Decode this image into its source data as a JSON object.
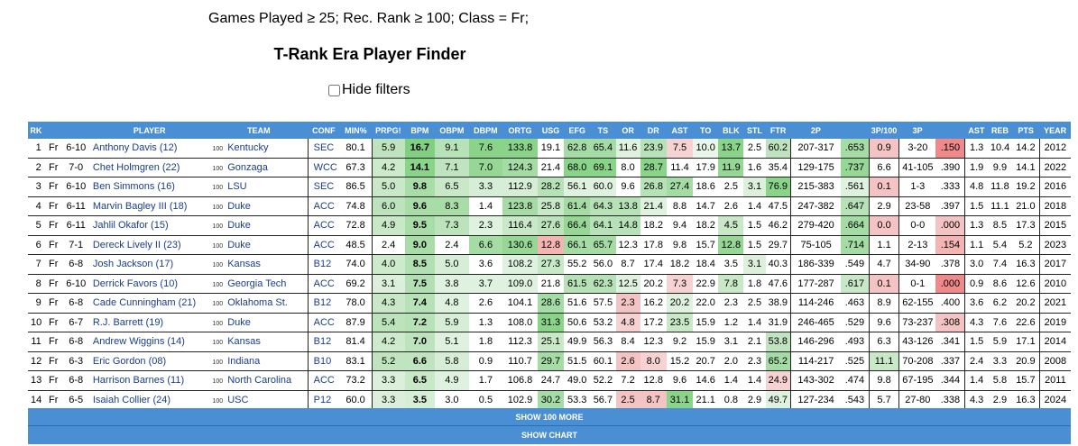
{
  "filters_text": "Games Played ≥ 25; Rec. Rank ≥ 100; Class = Fr;",
  "title": "T-Rank Era Player Finder",
  "hide_filters_label": "Hide filters",
  "columns": [
    "RK",
    "",
    "",
    "PLAYER",
    "TEAM",
    "CONF",
    "MIN%",
    "PRPG!",
    "BPM",
    "OBPM",
    "DBPM",
    "ORTG",
    "USG",
    "EFG",
    "TS",
    "OR",
    "DR",
    "AST",
    "TO",
    "BLK",
    "STL",
    "FTR",
    "2P",
    "",
    "3P/100",
    "3P",
    "",
    "AST",
    "REB",
    "PTS",
    "YEAR"
  ],
  "rows": [
    {
      "rk": "1",
      "cls": "Fr",
      "ht": "6-10",
      "player": "Anthony Davis (12)",
      "rec": "100",
      "team": "Kentucky",
      "conf": "SEC",
      "vals": [
        "80.1",
        "5.9",
        "16.7",
        "9.1",
        "7.6",
        "133.8",
        "19.1",
        "62.8",
        "65.4",
        "11.6",
        "23.9",
        "7.5",
        "10.0",
        "13.7",
        "2.5",
        "60.2",
        "207-317",
        ".653",
        "0.9",
        "3-20",
        ".150",
        "1.3",
        "10.4",
        "14.2",
        "2012"
      ]
    },
    {
      "rk": "2",
      "cls": "Fr",
      "ht": "7-0",
      "player": "Chet Holmgren (22)",
      "rec": "100",
      "team": "Gonzaga",
      "conf": "WCC",
      "vals": [
        "67.3",
        "4.2",
        "14.1",
        "7.1",
        "7.0",
        "124.3",
        "21.4",
        "68.0",
        "69.1",
        "8.0",
        "28.7",
        "11.4",
        "17.9",
        "11.9",
        "1.6",
        "35.4",
        "129-175",
        ".737",
        "6.6",
        "41-105",
        ".390",
        "1.9",
        "9.9",
        "14.1",
        "2022"
      ]
    },
    {
      "rk": "3",
      "cls": "Fr",
      "ht": "6-10",
      "player": "Ben Simmons (16)",
      "rec": "100",
      "team": "LSU",
      "conf": "SEC",
      "vals": [
        "86.5",
        "5.0",
        "9.8",
        "6.5",
        "3.3",
        "112.9",
        "28.2",
        "56.1",
        "60.0",
        "9.6",
        "26.8",
        "27.4",
        "18.6",
        "2.5",
        "3.1",
        "76.9",
        "215-383",
        ".561",
        "0.1",
        "1-3",
        ".333",
        "4.8",
        "11.8",
        "19.2",
        "2016"
      ]
    },
    {
      "rk": "4",
      "cls": "Fr",
      "ht": "6-11",
      "player": "Marvin Bagley III (18)",
      "rec": "100",
      "team": "Duke",
      "conf": "ACC",
      "vals": [
        "74.8",
        "6.0",
        "9.6",
        "8.3",
        "1.4",
        "123.8",
        "25.8",
        "61.4",
        "64.3",
        "13.8",
        "21.4",
        "8.8",
        "14.7",
        "2.6",
        "1.4",
        "47.5",
        "247-382",
        ".647",
        "2.9",
        "23-58",
        ".397",
        "1.5",
        "11.1",
        "21.0",
        "2018"
      ]
    },
    {
      "rk": "5",
      "cls": "Fr",
      "ht": "6-11",
      "player": "Jahlil Okafor (15)",
      "rec": "100",
      "team": "Duke",
      "conf": "ACC",
      "vals": [
        "72.8",
        "4.9",
        "9.5",
        "7.3",
        "2.3",
        "116.4",
        "27.6",
        "66.4",
        "64.1",
        "14.8",
        "18.2",
        "9.4",
        "18.2",
        "4.5",
        "1.5",
        "46.2",
        "279-420",
        ".664",
        "0.0",
        "0-0",
        ".000",
        "1.3",
        "8.5",
        "17.3",
        "2015"
      ]
    },
    {
      "rk": "6",
      "cls": "Fr",
      "ht": "7-1",
      "player": "Dereck Lively II (23)",
      "rec": "100",
      "team": "Duke",
      "conf": "ACC",
      "vals": [
        "48.5",
        "2.4",
        "9.0",
        "2.4",
        "6.6",
        "130.6",
        "12.8",
        "66.1",
        "65.7",
        "12.3",
        "17.8",
        "9.8",
        "15.7",
        "12.8",
        "1.5",
        "29.7",
        "75-105",
        ".714",
        "1.1",
        "2-13",
        ".154",
        "1.1",
        "5.4",
        "5.2",
        "2023"
      ]
    },
    {
      "rk": "7",
      "cls": "Fr",
      "ht": "6-8",
      "player": "Josh Jackson (17)",
      "rec": "100",
      "team": "Kansas",
      "conf": "B12",
      "vals": [
        "74.0",
        "4.0",
        "8.5",
        "5.0",
        "3.6",
        "108.2",
        "27.3",
        "55.2",
        "56.0",
        "8.7",
        "17.4",
        "18.2",
        "18.4",
        "3.5",
        "3.1",
        "40.3",
        "186-339",
        ".549",
        "4.7",
        "34-90",
        ".378",
        "3.0",
        "7.4",
        "16.3",
        "2017"
      ]
    },
    {
      "rk": "8",
      "cls": "Fr",
      "ht": "6-10",
      "player": "Derrick Favors (10)",
      "rec": "100",
      "team": "Georgia Tech",
      "conf": "ACC",
      "vals": [
        "69.2",
        "3.1",
        "7.5",
        "3.8",
        "3.7",
        "109.0",
        "21.8",
        "61.5",
        "62.3",
        "12.5",
        "20.2",
        "7.3",
        "22.9",
        "7.8",
        "1.8",
        "47.6",
        "177-287",
        ".617",
        "0.1",
        "0-1",
        ".000",
        "0.9",
        "8.6",
        "12.6",
        "2010"
      ]
    },
    {
      "rk": "9",
      "cls": "Fr",
      "ht": "6-8",
      "player": "Cade Cunningham (21)",
      "rec": "100",
      "team": "Oklahoma St.",
      "conf": "B12",
      "vals": [
        "78.0",
        "4.3",
        "7.4",
        "4.8",
        "2.6",
        "104.1",
        "28.6",
        "51.6",
        "57.5",
        "2.3",
        "16.2",
        "20.2",
        "22.0",
        "2.3",
        "2.5",
        "38.9",
        "114-246",
        ".463",
        "8.9",
        "62-155",
        ".400",
        "3.6",
        "6.2",
        "20.2",
        "2021"
      ]
    },
    {
      "rk": "10",
      "cls": "Fr",
      "ht": "6-7",
      "player": "R.J. Barrett (19)",
      "rec": "100",
      "team": "Duke",
      "conf": "ACC",
      "vals": [
        "87.9",
        "5.4",
        "7.2",
        "5.9",
        "1.3",
        "108.0",
        "31.3",
        "50.6",
        "53.2",
        "4.8",
        "17.2",
        "23.5",
        "15.9",
        "1.2",
        "1.4",
        "31.9",
        "246-465",
        ".529",
        "9.6",
        "73-237",
        ".308",
        "4.3",
        "7.6",
        "22.6",
        "2019"
      ]
    },
    {
      "rk": "11",
      "cls": "Fr",
      "ht": "6-8",
      "player": "Andrew Wiggins (14)",
      "rec": "100",
      "team": "Kansas",
      "conf": "B12",
      "vals": [
        "81.4",
        "4.2",
        "7.0",
        "5.1",
        "1.8",
        "112.3",
        "25.1",
        "49.9",
        "56.3",
        "8.4",
        "12.3",
        "9.2",
        "15.9",
        "3.1",
        "2.1",
        "53.8",
        "146-296",
        ".493",
        "6.3",
        "43-126",
        ".341",
        "1.5",
        "5.9",
        "17.1",
        "2014"
      ]
    },
    {
      "rk": "12",
      "cls": "Fr",
      "ht": "6-3",
      "player": "Eric Gordon (08)",
      "rec": "100",
      "team": "Indiana",
      "conf": "B10",
      "vals": [
        "83.1",
        "5.2",
        "6.6",
        "5.8",
        "0.9",
        "110.7",
        "29.7",
        "51.5",
        "60.1",
        "2.6",
        "8.0",
        "15.2",
        "20.7",
        "2.0",
        "2.3",
        "65.2",
        "114-217",
        ".525",
        "11.1",
        "70-208",
        ".337",
        "2.4",
        "3.3",
        "20.9",
        "2008"
      ]
    },
    {
      "rk": "13",
      "cls": "Fr",
      "ht": "6-8",
      "player": "Harrison Barnes (11)",
      "rec": "100",
      "team": "North Carolina",
      "conf": "ACC",
      "vals": [
        "73.2",
        "3.3",
        "6.5",
        "4.9",
        "1.7",
        "106.8",
        "24.7",
        "49.0",
        "52.2",
        "7.2",
        "12.8",
        "9.6",
        "14.6",
        "1.4",
        "1.4",
        "24.9",
        "143-302",
        ".474",
        "9.8",
        "67-195",
        ".344",
        "1.4",
        "5.8",
        "15.7",
        "2011"
      ]
    },
    {
      "rk": "14",
      "cls": "Fr",
      "ht": "6-5",
      "player": "Isaiah Collier (24)",
      "rec": "100",
      "team": "USC",
      "conf": "P12",
      "vals": [
        "60.0",
        "3.3",
        "3.5",
        "3.0",
        "0.5",
        "102.9",
        "30.2",
        "53.3",
        "56.7",
        "2.5",
        "8.7",
        "31.1",
        "21.1",
        "0.8",
        "2.9",
        "49.7",
        "127-234",
        ".543",
        "5.7",
        "27-80",
        ".338",
        "4.3",
        "2.9",
        "16.3",
        "2024"
      ]
    }
  ],
  "cell_colors": {
    "1": {
      "1": "#bfe3bf",
      "2": "#7fd07f",
      "3": "#b7e2b7",
      "4": "#8ad48a",
      "5": "#8ad48a",
      "6": "#ffffff",
      "7": "#a5dca5",
      "8": "#a5dca5",
      "9": "#dff1df",
      "10": "#b7e2b7",
      "11": "#f7d2d2",
      "12": "#e9f6e9",
      "13": "#8ad48a",
      "15": "#bfe3bf",
      "17": "#a5dca5",
      "18": "#f4c4c4",
      "20": "#f08a8a"
    },
    "2": {
      "1": "#cdeacd",
      "2": "#8ad48a",
      "3": "#c0e4c0",
      "4": "#96d796",
      "5": "#a5dca5",
      "7": "#8ad48a",
      "8": "#8ad48a",
      "10": "#8ad48a",
      "13": "#96d796",
      "17": "#96d796"
    },
    "3": {
      "1": "#c8e8c8",
      "2": "#a8dda8",
      "3": "#c8e8c8",
      "4": "#d6edd6",
      "5": "#d6edd6",
      "6": "#b7e2b7",
      "7": "#dff1df",
      "8": "#dff1df",
      "10": "#b7e2b7",
      "11": "#a5dca5",
      "14": "#dcf0dc",
      "15": "#8ad48a",
      "17": "#dff1df",
      "18": "#f4c4c4"
    },
    "4": {
      "1": "#bde3bd",
      "2": "#a8dda8",
      "3": "#a8dda8",
      "5": "#a5dca5",
      "6": "#c8e8c8",
      "7": "#a5dca5",
      "8": "#b7e2b7",
      "9": "#b7e2b7",
      "10": "#dff1df",
      "17": "#b7e2b7"
    },
    "5": {
      "1": "#c8e8c8",
      "2": "#a8dda8",
      "3": "#bde3bd",
      "4": "#dff1df",
      "5": "#c8e8c8",
      "6": "#bde3bd",
      "7": "#96d796",
      "8": "#b7e2b7",
      "9": "#b7e2b7",
      "13": "#c8e8c8",
      "17": "#a5dca5",
      "18": "#f4c4c4",
      "20": "#f4c4c4"
    },
    "6": {
      "2": "#a8dda8",
      "4": "#a5dca5",
      "5": "#96d796",
      "6": "#f4b4b4",
      "7": "#a5dca5",
      "8": "#a5dca5",
      "13": "#96d796",
      "17": "#a5dca5",
      "20": "#f4b4b4"
    },
    "7": {
      "1": "#cdeacd",
      "2": "#b3e0b3",
      "3": "#d6edd6",
      "5": "#dff1df",
      "6": "#c8e8c8",
      "14": "#dcf0dc"
    },
    "8": {
      "1": "#dbefdb",
      "2": "#b3e0b3",
      "3": "#dff1df",
      "4": "#dff1df",
      "5": "#dff1df",
      "7": "#b7e2b7",
      "8": "#b7e2b7",
      "9": "#dff1df",
      "11": "#f7d2d2",
      "13": "#c8e8c8",
      "17": "#c8e8c8",
      "18": "#f4c4c4",
      "20": "#f08a8a"
    },
    "9": {
      "1": "#c8e8c8",
      "2": "#b7e2b7",
      "3": "#dff1df",
      "6": "#a5dca5",
      "9": "#f4c4c4",
      "11": "#dff1df"
    },
    "10": {
      "1": "#bde3bd",
      "2": "#b7e2b7",
      "3": "#d6edd6",
      "6": "#8ad48a",
      "9": "#f7d2d2",
      "11": "#c8e8c8",
      "20": "#f4c4c4"
    },
    "11": {
      "1": "#cdeacd",
      "2": "#bde3bd",
      "3": "#dff1df",
      "6": "#c8e8c8",
      "15": "#c0e4c0"
    },
    "12": {
      "1": "#c0e4c0",
      "2": "#c0e4c0",
      "3": "#d6edd6",
      "6": "#a5dca5",
      "9": "#f4c4c4",
      "10": "#f7d2d2",
      "15": "#a5dca5",
      "18": "#c8e8c8"
    },
    "13": {
      "1": "#dbefdb",
      "2": "#c8e8c8",
      "3": "#dff1df",
      "15": "#f7d2d2"
    },
    "14": {
      "1": "#dbefdb",
      "2": "#d6edd6",
      "6": "#a5dca5",
      "9": "#f4c4c4",
      "10": "#f4c4c4",
      "11": "#8ad48a",
      "15": "#dff1df"
    }
  },
  "show_more_label": "SHOW 100 MORE",
  "show_chart_label": "SHOW CHART"
}
